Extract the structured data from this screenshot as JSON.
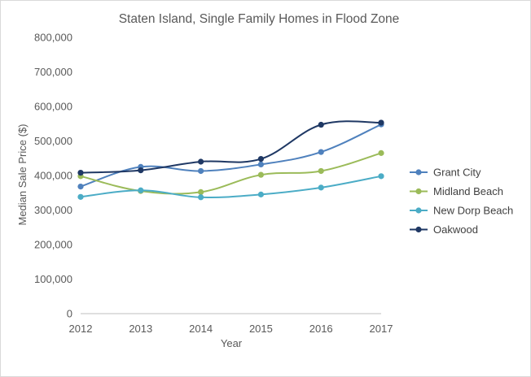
{
  "chart_data": {
    "type": "line",
    "title": "Staten Island, Single Family Homes  in Flood Zone",
    "xlabel": "Year",
    "ylabel": "Median Sale Price ($)",
    "x": [
      "2012",
      "2013",
      "2014",
      "2015",
      "2016",
      "2017"
    ],
    "ylim": [
      0,
      800000
    ],
    "yticks": [
      0,
      100000,
      200000,
      300000,
      400000,
      500000,
      600000,
      700000,
      800000
    ],
    "ytick_labels": [
      "0",
      "100,000",
      "200,000",
      "300,000",
      "400,000",
      "500,000",
      "600,000",
      "700,000",
      "800,000"
    ],
    "grid": false,
    "legend_position": "right",
    "series": [
      {
        "name": "Grant City",
        "color": "#4f81bd",
        "values": [
          368000,
          425000,
          413000,
          432000,
          468000,
          548000
        ]
      },
      {
        "name": "Midland Beach",
        "color": "#9bbb59",
        "values": [
          398000,
          355000,
          352000,
          402000,
          413000,
          465000
        ]
      },
      {
        "name": "New Dorp Beach",
        "color": "#4bacc6",
        "values": [
          338000,
          357000,
          337000,
          345000,
          365000,
          398000
        ]
      },
      {
        "name": "Oakwood",
        "color": "#1f3864",
        "values": [
          408000,
          415000,
          440000,
          448000,
          547000,
          553000
        ]
      }
    ]
  }
}
